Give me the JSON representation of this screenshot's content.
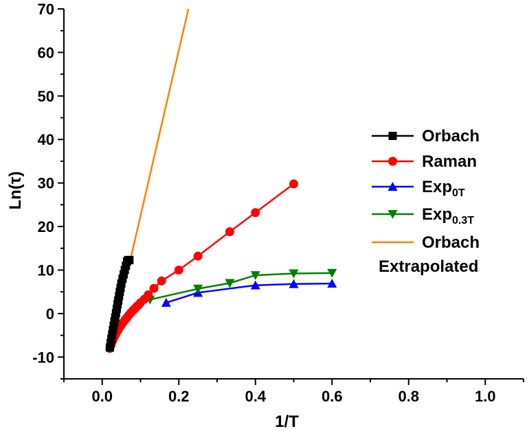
{
  "chart_data": {
    "type": "line",
    "xlabel": "1/T",
    "ylabel": "Ln(τ)",
    "xlim": [
      -0.1,
      1.1
    ],
    "ylim": [
      -15,
      70
    ],
    "xticks": [
      0.0,
      0.2,
      0.4,
      0.6,
      0.8,
      1.0
    ],
    "xtick_labels": [
      "0.0",
      "0.2",
      "0.4",
      "0.6",
      "0.8",
      "1.0"
    ],
    "yticks": [
      -10,
      0,
      10,
      20,
      30,
      40,
      50,
      60,
      70
    ],
    "ytick_labels": [
      "-10",
      "0",
      "10",
      "20",
      "30",
      "40",
      "50",
      "60",
      "70"
    ],
    "legend_position": "right",
    "series": [
      {
        "key": "orbach",
        "name": "Orbach",
        "color": "#000000",
        "marker": "square",
        "x": [
          0.02,
          0.022,
          0.024,
          0.026,
          0.028,
          0.03,
          0.032,
          0.034,
          0.036,
          0.038,
          0.04,
          0.042,
          0.044,
          0.046,
          0.048,
          0.05,
          0.053,
          0.056,
          0.059,
          0.062,
          0.065,
          0.068,
          0.071
        ],
        "y": [
          -7.8,
          -6.8,
          -5.8,
          -4.8,
          -3.8,
          -2.8,
          -1.8,
          -0.9,
          0.1,
          1.1,
          2.1,
          3.0,
          4.0,
          5.0,
          5.9,
          6.9,
          8.0,
          9.0,
          10.0,
          11.0,
          12.0,
          12.3,
          12.3
        ]
      },
      {
        "key": "raman",
        "name": "Raman",
        "color": "#ff0000",
        "marker": "circle",
        "x": [
          0.02,
          0.023,
          0.026,
          0.029,
          0.032,
          0.035,
          0.038,
          0.042,
          0.046,
          0.05,
          0.055,
          0.06,
          0.065,
          0.07,
          0.075,
          0.08,
          0.085,
          0.09,
          0.095,
          0.1,
          0.11,
          0.12,
          0.135,
          0.155,
          0.2,
          0.25,
          0.333,
          0.4,
          0.5
        ],
        "y": [
          -8.0,
          -7.2,
          -6.5,
          -5.9,
          -5.3,
          -4.8,
          -4.3,
          -3.7,
          -3.1,
          -2.6,
          -2.0,
          -1.4,
          -0.9,
          -0.3,
          0.2,
          0.7,
          1.1,
          1.6,
          2.0,
          2.5,
          3.3,
          4.3,
          5.8,
          7.5,
          10.0,
          13.2,
          18.8,
          23.2,
          29.8
        ]
      },
      {
        "key": "exp0t",
        "name": "Exp",
        "subscript": "0T",
        "color": "#0000ff",
        "marker": "triangle-up",
        "x": [
          0.167,
          0.25,
          0.4,
          0.5,
          0.6
        ],
        "y": [
          2.5,
          4.8,
          6.5,
          6.8,
          6.9
        ]
      },
      {
        "key": "exp03t",
        "name": "Exp",
        "subscript": "0.3T",
        "color": "#008000",
        "marker": "triangle-down",
        "x": [
          0.125,
          0.25,
          0.333,
          0.4,
          0.5,
          0.6
        ],
        "y": [
          3.2,
          5.7,
          7.0,
          8.8,
          9.2,
          9.3
        ]
      },
      {
        "key": "orbach_extrap",
        "name": "Orbach",
        "name_line2": "Extrapolated",
        "color": "#ff8000",
        "marker": "none",
        "x": [
          0.02,
          0.225
        ],
        "y": [
          -8.0,
          70.0
        ]
      }
    ]
  }
}
